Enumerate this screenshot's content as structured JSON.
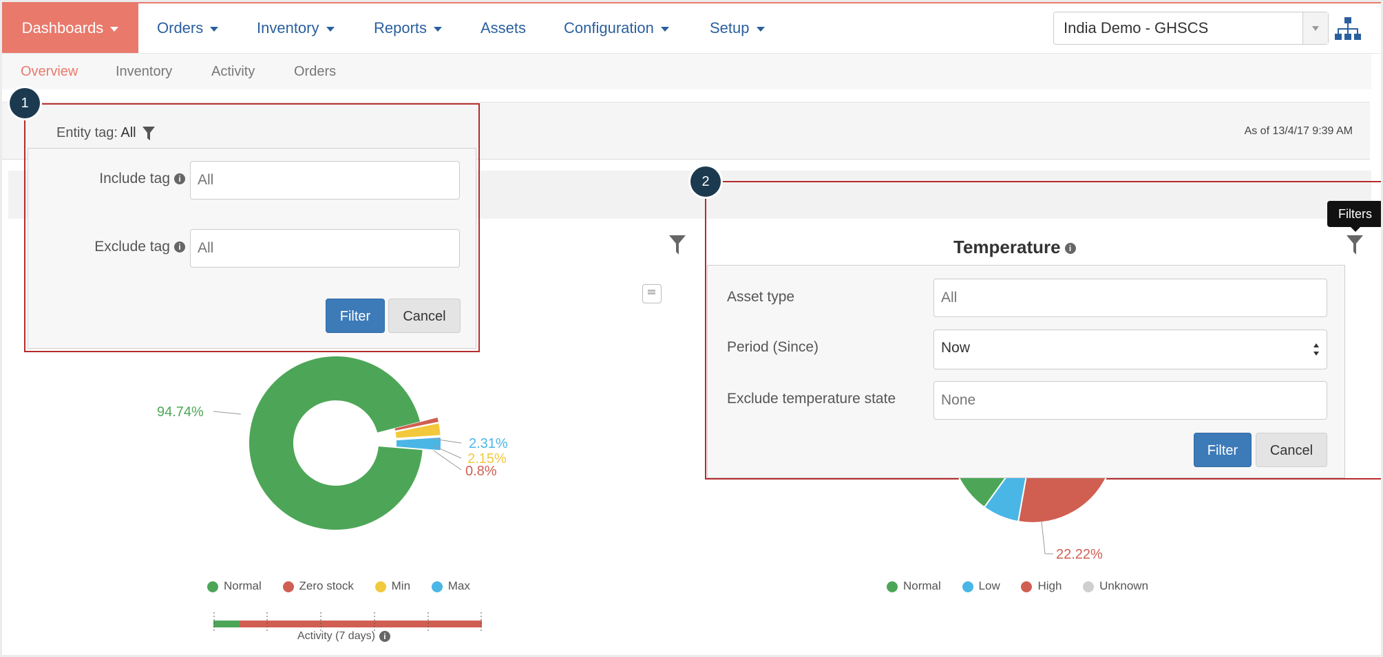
{
  "colors": {
    "accent": "#e8796b",
    "link": "#2a5f9e",
    "primary": "#3d7ab8",
    "normal": "#4da657",
    "zero_stock": "#d05f52",
    "min": "#f2c93d",
    "max": "#4ab6e6",
    "low": "#4ab6e6",
    "high": "#d05f52",
    "unknown": "#cfcfcf",
    "callout": "#b52a2a",
    "marker": "#1c3a4f"
  },
  "nav": {
    "items": [
      {
        "label": "Dashboards",
        "dropdown": true,
        "active": true
      },
      {
        "label": "Orders",
        "dropdown": true
      },
      {
        "label": "Inventory",
        "dropdown": true
      },
      {
        "label": "Reports",
        "dropdown": true
      },
      {
        "label": "Assets",
        "dropdown": false
      },
      {
        "label": "Configuration",
        "dropdown": true
      },
      {
        "label": "Setup",
        "dropdown": true
      }
    ],
    "domain_select": "India Demo - GHSCS",
    "hierarchy_icon": "sitemap-icon"
  },
  "subnav": {
    "items": [
      "Overview",
      "Inventory",
      "Activity",
      "Orders"
    ],
    "active": "Overview"
  },
  "as_of": "As of 13/4/17 9:39 AM",
  "markers": [
    "1",
    "2"
  ],
  "entity_filter": {
    "label": "Entity tag:",
    "value": "All",
    "include_label": "Include tag",
    "include_placeholder": "All",
    "exclude_label": "Exclude tag",
    "exclude_placeholder": "All",
    "filter_btn": "Filter",
    "cancel_btn": "Cancel"
  },
  "inventory_chart": {
    "labels": {
      "normal": "94.74%",
      "max": "2.31%",
      "min": "2.15%",
      "zero": "0.8%"
    },
    "legend": [
      "Normal",
      "Zero stock",
      "Min",
      "Max"
    ],
    "activity_label": "Activity (7 days)"
  },
  "temperature": {
    "title": "Temperature",
    "tooltip": "Filters",
    "asset_type_label": "Asset type",
    "asset_type_placeholder": "All",
    "period_label": "Period (Since)",
    "period_value": "Now",
    "exclude_label": "Exclude temperature state",
    "exclude_placeholder": "None",
    "filter_btn": "Filter",
    "cancel_btn": "Cancel",
    "high_pct": "22.22%",
    "legend": [
      "Normal",
      "Low",
      "High",
      "Unknown"
    ]
  },
  "chart_data": [
    {
      "type": "pie",
      "title": "",
      "categories": [
        "Normal",
        "Zero stock",
        "Min",
        "Max"
      ],
      "values": [
        94.74,
        0.8,
        2.15,
        2.31
      ]
    },
    {
      "type": "pie",
      "title": "Temperature",
      "categories": [
        "Normal",
        "Low",
        "High",
        "Unknown"
      ],
      "values": [
        null,
        null,
        22.22,
        null
      ]
    }
  ]
}
